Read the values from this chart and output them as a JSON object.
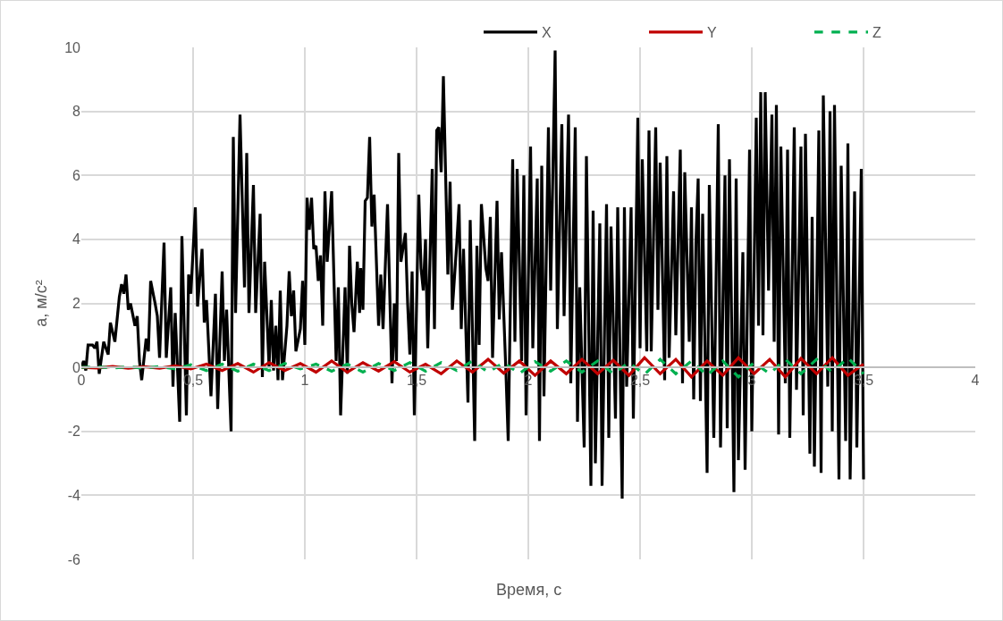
{
  "chart_data": {
    "type": "line",
    "xlabel": "Время, с",
    "ylabel": "а, м/с²",
    "xlim": [
      0,
      4
    ],
    "xticks": [
      0,
      {
        "value": 0.5,
        "label": "0,5"
      },
      1,
      {
        "value": 1.5,
        "label": "1,5"
      },
      2,
      {
        "value": 2.5,
        "label": "2,5"
      },
      3,
      {
        "value": 3.5,
        "label": "3,5"
      },
      4
    ],
    "ylim": [
      -6,
      10
    ],
    "yticks": [
      -6,
      -4,
      -2,
      0,
      2,
      4,
      6,
      8,
      10
    ],
    "grid": true,
    "legend": "top right",
    "marker": "none",
    "series": [
      {
        "name": "X",
        "color": "#000000",
        "line_style": "solid",
        "x": [
          0,
          0.01,
          0.02,
          0.03,
          0.05,
          0.06,
          0.07,
          0.08,
          0.1,
          0.12,
          0.13,
          0.15,
          0.17,
          0.18,
          0.19,
          0.2,
          0.21,
          0.22,
          0.24,
          0.25,
          0.26,
          0.27,
          0.29,
          0.3,
          0.31,
          0.33,
          0.34,
          0.35,
          0.37,
          0.38,
          0.4,
          0.41,
          0.42,
          0.44,
          0.45,
          0.47,
          0.48,
          0.49,
          0.51,
          0.52,
          0.54,
          0.55,
          0.56,
          0.58,
          0.6,
          0.61,
          0.63,
          0.64,
          0.65,
          0.67,
          0.68,
          0.69,
          0.71,
          0.73,
          0.74,
          0.75,
          0.77,
          0.78,
          0.8,
          0.81,
          0.82,
          0.84,
          0.85,
          0.86,
          0.87,
          0.88,
          0.89,
          0.9,
          0.92,
          0.93,
          0.94,
          0.95,
          0.96,
          0.98,
          0.99,
          1.0,
          1.01,
          1.02,
          1.03,
          1.04,
          1.05,
          1.06,
          1.07,
          1.08,
          1.09,
          1.1,
          1.12,
          1.14,
          1.15,
          1.16,
          1.18,
          1.19,
          1.2,
          1.21,
          1.22,
          1.235,
          1.245,
          1.25,
          1.26,
          1.27,
          1.28,
          1.29,
          1.3,
          1.31,
          1.33,
          1.34,
          1.35,
          1.37,
          1.39,
          1.4,
          1.41,
          1.42,
          1.43,
          1.45,
          1.46,
          1.47,
          1.48,
          1.49,
          1.51,
          1.52,
          1.53,
          1.54,
          1.55,
          1.57,
          1.58,
          1.59,
          1.6,
          1.61,
          1.62,
          1.64,
          1.65,
          1.66,
          1.68,
          1.69,
          1.7,
          1.71,
          1.73,
          1.74,
          1.76,
          1.77,
          1.78,
          1.79,
          1.81,
          1.82,
          1.83,
          1.84,
          1.86,
          1.87,
          1.88,
          1.9,
          1.91,
          1.93,
          1.94,
          1.95,
          1.97,
          1.98,
          1.99,
          2.01,
          2.02,
          2.04,
          2.05,
          2.06,
          2.07,
          2.09,
          2.1,
          2.12,
          2.13,
          2.15,
          2.16,
          2.18,
          2.19,
          2.21,
          2.22,
          2.23,
          2.25,
          2.26,
          2.28,
          2.29,
          2.3,
          2.32,
          2.33,
          2.35,
          2.36,
          2.37,
          2.39,
          2.4,
          2.42,
          2.43,
          2.44,
          2.46,
          2.47,
          2.49,
          2.5,
          2.51,
          2.53,
          2.54,
          2.55,
          2.57,
          2.58,
          2.59,
          2.61,
          2.62,
          2.63,
          2.65,
          2.66,
          2.68,
          2.69,
          2.7,
          2.72,
          2.73,
          2.74,
          2.75,
          2.76,
          2.77,
          2.78,
          2.8,
          2.81,
          2.83,
          2.85,
          2.86,
          2.88,
          2.89,
          2.9,
          2.92,
          2.93,
          2.94,
          2.96,
          2.97,
          2.99,
          3.0,
          3.02,
          3.03,
          3.04,
          3.05,
          3.06,
          3.075,
          3.09,
          3.1,
          3.11,
          3.12,
          3.13,
          3.15,
          3.16,
          3.17,
          3.19,
          3.2,
          3.22,
          3.23,
          3.24,
          3.26,
          3.27,
          3.28,
          3.3,
          3.31,
          3.32,
          3.34,
          3.35,
          3.36,
          3.37,
          3.39,
          3.4,
          3.42,
          3.43,
          3.44,
          3.46,
          3.47,
          3.49,
          3.5
        ],
        "values": [
          0,
          0.2,
          -0.1,
          0.7,
          0.7,
          0.6,
          0.8,
          -0.2,
          0.8,
          0.4,
          1.4,
          0.8,
          2.2,
          2.6,
          2.3,
          2.9,
          1.8,
          2.0,
          1.3,
          1.6,
          0.2,
          -0.4,
          0.9,
          0.5,
          2.7,
          2.0,
          1.6,
          0.3,
          3.9,
          0.3,
          2.5,
          -0.6,
          1.7,
          -1.7,
          4.1,
          -1.5,
          2.9,
          2.3,
          5.0,
          1.9,
          3.7,
          1.4,
          2.1,
          -0.9,
          2.3,
          -1.3,
          3.0,
          0.2,
          1.8,
          -2.0,
          7.2,
          1.7,
          7.9,
          2.5,
          6.7,
          1.7,
          5.7,
          1.7,
          4.8,
          -0.3,
          3.3,
          0.0,
          2.1,
          -0.1,
          1.3,
          -0.4,
          2.4,
          -0.4,
          1.3,
          3.0,
          1.6,
          2.4,
          0.5,
          1.2,
          2.7,
          0.7,
          5.3,
          4.3,
          5.3,
          3.7,
          3.8,
          2.7,
          3.5,
          1.3,
          5.5,
          3.3,
          5.5,
          0.2,
          2.5,
          -1.5,
          2.5,
          -0.2,
          3.8,
          2.0,
          1.1,
          3.3,
          1.7,
          3.1,
          1.8,
          5.2,
          5.3,
          7.2,
          4.4,
          5.4,
          1.3,
          2.9,
          1.2,
          5.1,
          -0.5,
          2.0,
          0.2,
          6.7,
          3.3,
          4.2,
          2.0,
          0.4,
          3.0,
          -1.5,
          5.4,
          3.1,
          2.4,
          4.0,
          0.6,
          6.2,
          1.2,
          7.4,
          7.5,
          6.1,
          9.1,
          2.9,
          5.8,
          1.8,
          3.9,
          5.1,
          1.2,
          3.7,
          -1.1,
          4.6,
          -2.3,
          3.8,
          0.7,
          5.1,
          3.1,
          2.7,
          4.7,
          0.3,
          5.2,
          1.5,
          3.6,
          -0.2,
          -2.3,
          6.5,
          0.8,
          6.2,
          0.2,
          6.0,
          -1.5,
          6.9,
          0.6,
          5.9,
          -2.3,
          6.3,
          -0.9,
          7.5,
          2.4,
          9.9,
          1.2,
          7.6,
          1.6,
          7.9,
          -0.5,
          7.5,
          -1.7,
          2.5,
          -2.5,
          6.6,
          -3.7,
          4.9,
          -3.0,
          4.5,
          -3.7,
          5.1,
          -2.2,
          4.4,
          -1.6,
          5.0,
          -4.1,
          5.0,
          -0.6,
          5.0,
          -1.6,
          7.8,
          0.6,
          6.5,
          0.5,
          7.4,
          0.5,
          7.5,
          1.8,
          6.4,
          -0.4,
          6.6,
          0.3,
          5.5,
          1.0,
          6.8,
          -0.5,
          6.1,
          0.8,
          5.0,
          -1.0,
          3.9,
          5.9,
          -1.05,
          4.8,
          -3.3,
          5.7,
          -2.2,
          7.6,
          -2.5,
          6.0,
          -1.9,
          6.5,
          -3.9,
          5.9,
          -2.9,
          3.6,
          -3.2,
          6.8,
          -2.0,
          7.8,
          1.3,
          8.6,
          1.0,
          8.6,
          2.4,
          7.9,
          0.8,
          8.2,
          -2.1,
          6.9,
          -0.5,
          6.8,
          -2.2,
          7.5,
          -0.7,
          6.9,
          -1.5,
          7.3,
          -2.7,
          4.7,
          -3.1,
          7.4,
          -3.3,
          8.5,
          -0.6,
          8.0,
          -2.0,
          8.2,
          -3.5,
          6.3,
          -2.3,
          7.0,
          -3.5,
          5.5,
          -2.5,
          6.2,
          -3.5
        ]
      },
      {
        "name": "Y",
        "color": "#c00000",
        "line_style": "solid",
        "x": [
          0,
          0.07,
          0.14,
          0.21,
          0.28,
          0.35,
          0.42,
          0.49,
          0.56,
          0.63,
          0.7,
          0.77,
          0.84,
          0.91,
          0.98,
          1.05,
          1.12,
          1.19,
          1.26,
          1.33,
          1.4,
          1.47,
          1.54,
          1.61,
          1.68,
          1.75,
          1.82,
          1.89,
          1.96,
          2.03,
          2.1,
          2.17,
          2.24,
          2.31,
          2.38,
          2.45,
          2.52,
          2.59,
          2.66,
          2.73,
          2.8,
          2.87,
          2.94,
          3.01,
          3.08,
          3.15,
          3.22,
          3.29,
          3.36,
          3.43,
          3.5
        ],
        "values": [
          0,
          -0.02,
          0.03,
          -0.03,
          0.02,
          -0.03,
          0.05,
          -0.05,
          0.1,
          -0.1,
          0.12,
          -0.15,
          0.15,
          -0.1,
          0.12,
          -0.15,
          0.2,
          -0.15,
          0.15,
          -0.12,
          0.18,
          -0.15,
          0.1,
          -0.2,
          0.2,
          -0.15,
          0.25,
          -0.18,
          0.2,
          -0.25,
          0.2,
          -0.2,
          0.25,
          -0.2,
          0.22,
          -0.25,
          0.3,
          -0.2,
          0.25,
          -0.3,
          0.2,
          -0.25,
          0.3,
          -0.2,
          0.25,
          -0.3,
          0.28,
          -0.2,
          0.3,
          -0.25,
          0.1
        ]
      },
      {
        "name": "Z",
        "color": "#00b050",
        "line_style": "dashed",
        "x": [
          0,
          0.07,
          0.14,
          0.21,
          0.28,
          0.35,
          0.42,
          0.49,
          0.56,
          0.63,
          0.7,
          0.77,
          0.84,
          0.91,
          0.98,
          1.05,
          1.12,
          1.19,
          1.26,
          1.33,
          1.4,
          1.47,
          1.54,
          1.61,
          1.68,
          1.75,
          1.82,
          1.89,
          1.96,
          2.03,
          2.1,
          2.17,
          2.24,
          2.31,
          2.38,
          2.45,
          2.52,
          2.59,
          2.66,
          2.73,
          2.8,
          2.87,
          2.94,
          3.01,
          3.08,
          3.15,
          3.22,
          3.29,
          3.36,
          3.43,
          3.5
        ],
        "values": [
          0,
          0.02,
          -0.02,
          0.02,
          -0.03,
          0.03,
          -0.05,
          0.08,
          -0.1,
          0.1,
          -0.12,
          0.1,
          -0.1,
          0.12,
          -0.05,
          0.1,
          -0.12,
          0.1,
          -0.15,
          0.12,
          -0.1,
          0.15,
          -0.12,
          0.15,
          -0.1,
          0.2,
          -0.15,
          0.15,
          -0.2,
          0.18,
          -0.12,
          0.2,
          -0.15,
          0.2,
          -0.2,
          0.15,
          -0.22,
          0.25,
          -0.2,
          0.2,
          -0.25,
          0.2,
          -0.3,
          0.15,
          -0.2,
          0.25,
          -0.2,
          0.25,
          -0.15,
          0.3,
          -0.2
        ]
      }
    ]
  }
}
